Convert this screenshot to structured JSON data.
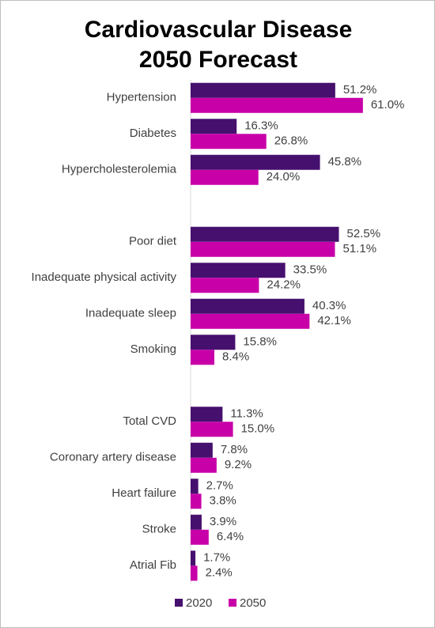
{
  "chart_data": {
    "type": "bar",
    "orientation": "horizontal",
    "title": "Cardiovascular Disease 2050 Forecast",
    "categories": [
      "Hypertension",
      "Diabetes",
      "Hypercholesterolemia",
      null,
      "Poor diet",
      "Inadequate physical activity",
      "Inadequate sleep",
      "Smoking",
      null,
      "Total CVD",
      "Coronary artery disease",
      "Heart failure",
      "Stroke",
      "Atrial Fib"
    ],
    "series": [
      {
        "name": "2020",
        "color": "#46106e",
        "values": [
          51.2,
          16.3,
          45.8,
          null,
          52.5,
          33.5,
          40.3,
          15.8,
          null,
          11.3,
          7.8,
          2.7,
          3.9,
          1.7
        ],
        "value_labels": [
          "51.2%",
          "16.3%",
          "45.8%",
          null,
          "52.5%",
          "33.5%",
          "40.3%",
          "15.8%",
          null,
          "11.3%",
          "7.8%",
          "2.7%",
          "3.9%",
          "1.7%"
        ]
      },
      {
        "name": "2050",
        "color": "#c800a8",
        "values": [
          61.0,
          26.8,
          24.0,
          null,
          51.1,
          24.2,
          42.1,
          8.4,
          null,
          15.0,
          9.2,
          3.8,
          6.4,
          2.4
        ],
        "value_labels": [
          "61.0%",
          "26.8%",
          "24.0%",
          null,
          "51.1%",
          "24.2%",
          "42.1%",
          "8.4%",
          null,
          "15.0%",
          "9.2%",
          "3.8%",
          "6.4%",
          "2.4%"
        ]
      }
    ],
    "xlim": [
      0,
      70
    ],
    "legend": "bottom"
  }
}
